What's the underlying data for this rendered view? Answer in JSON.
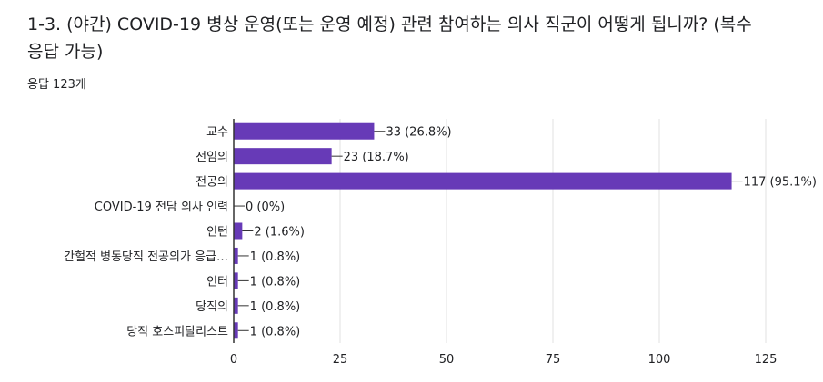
{
  "question": {
    "title": "1-3. (야간) COVID-19 병상 운영(또는 운영 예정) 관련 참여하는 의사 직군이 어떻게 됩니까? (복수응답 가능)",
    "response_count": "응답 123개"
  },
  "colors": {
    "bar": "#673ab7",
    "axis": "#333333",
    "grid": "#e0e0e0",
    "text": "#202124"
  },
  "chart_data": {
    "type": "bar",
    "orientation": "horizontal",
    "title": "",
    "xlabel": "",
    "ylabel": "",
    "xlim": [
      0,
      125
    ],
    "ticks": [
      0,
      25,
      50,
      75,
      100,
      125
    ],
    "grid": true,
    "categories": [
      "교수",
      "전임의",
      "전공의",
      "COVID-19 전담 의사 인력",
      "인턴",
      "간헐적 병동당직 전공의가 응급…",
      "인터",
      "당직의",
      "당직 호스피탈리스트"
    ],
    "values": [
      33,
      23,
      117,
      0,
      2,
      1,
      1,
      1,
      1
    ],
    "labels": [
      "33 (26.8%)",
      "23 (18.7%)",
      "117 (95.1%)",
      "0 (0%)",
      "2 (1.6%)",
      "1 (0.8%)",
      "1 (0.8%)",
      "1 (0.8%)",
      "1 (0.8%)"
    ]
  }
}
